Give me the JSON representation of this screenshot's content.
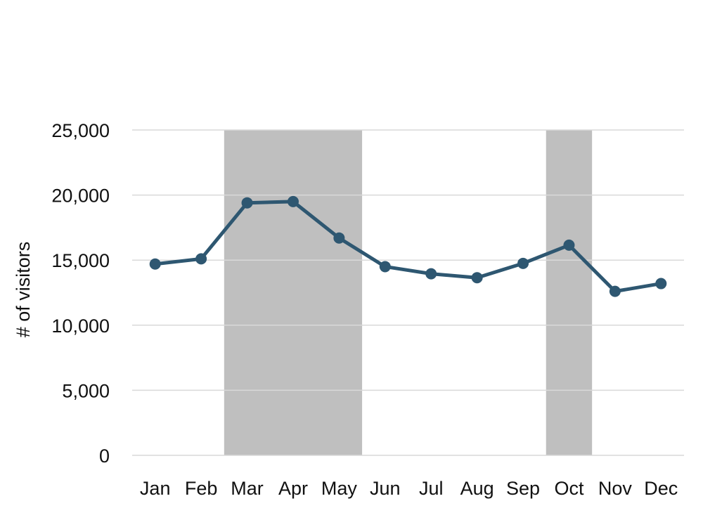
{
  "chart_data": {
    "type": "line",
    "title": "",
    "xlabel": "",
    "ylabel": "# of visitors",
    "categories": [
      "Jan",
      "Feb",
      "Mar",
      "Apr",
      "May",
      "Jun",
      "Jul",
      "Aug",
      "Sep",
      "Oct",
      "Nov",
      "Dec"
    ],
    "series": [
      {
        "values": [
          14700,
          15100,
          19400,
          19500,
          16700,
          14500,
          13950,
          13650,
          14750,
          16150,
          12600,
          13200
        ]
      }
    ],
    "ylim": [
      0,
      25000
    ],
    "yticks": [
      0,
      5000,
      10000,
      15000,
      20000,
      25000
    ],
    "ytick_labels": [
      "0",
      "5,000",
      "10,000",
      "15,000",
      "20,000",
      "25,000"
    ],
    "grid": true,
    "legend": "none",
    "highlight_ranges": [
      {
        "from": "Mar",
        "to": "May"
      },
      {
        "from": "Oct",
        "to": "Oct"
      }
    ],
    "colors": {
      "line": "#2e5771",
      "highlight": "#bfbfbf",
      "grid": "#d9d9d9"
    }
  }
}
